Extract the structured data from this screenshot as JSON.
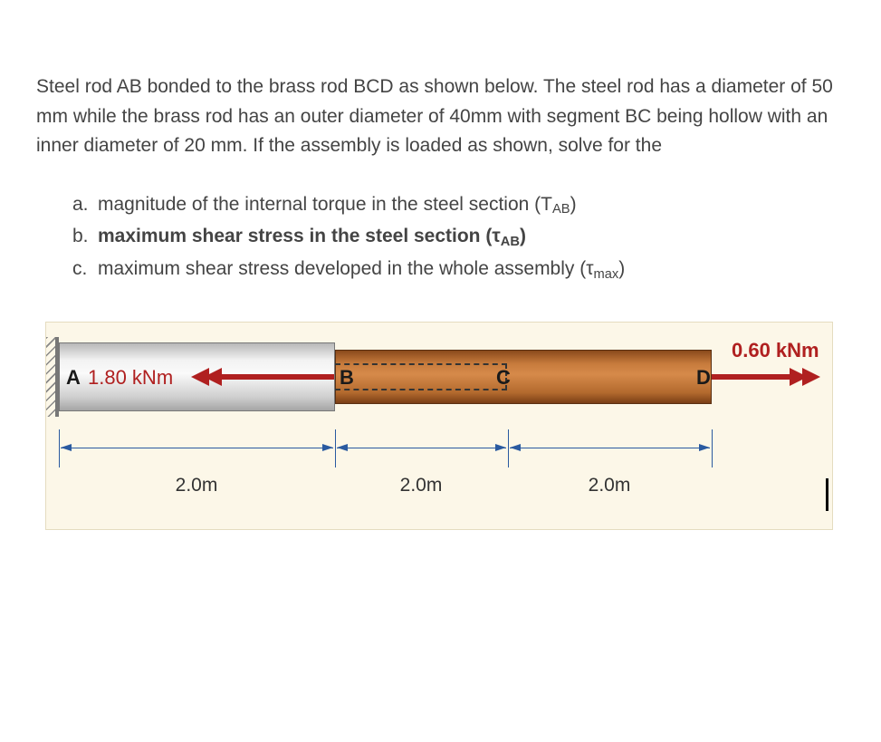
{
  "intro_text": "Steel rod AB bonded to the brass rod BCD as shown below. The steel rod has a diameter of 50 mm while the brass rod has an outer diameter of 40mm with segment BC being hollow with an inner diameter of 20 mm. If the assembly is loaded as shown, solve for the",
  "questions": {
    "a": {
      "letter": "a.",
      "text": "magnitude of the internal torque in the steel section (T",
      "sub": "AB",
      "tail": ")"
    },
    "b": {
      "letter": "b.",
      "text": "maximum shear stress in the steel section (τ",
      "sub": "AB",
      "tail": ")"
    },
    "c": {
      "letter": "c.",
      "text": "maximum shear stress developed in the whole assembly (τ",
      "sub": "max",
      "tail": ")"
    }
  },
  "diagram": {
    "type": "engineering-diagram",
    "background_color": "#fcf7e8",
    "steel": {
      "length_label": "2.0m",
      "diameter_mm": 50,
      "gradient": [
        "#b8b8b8",
        "#f2f2f2",
        "#fafafa",
        "#cfcfcf",
        "#a5a5a5"
      ]
    },
    "brass": {
      "length_BC_label": "2.0m",
      "length_CD_label": "2.0m",
      "outer_diameter_mm": 40,
      "inner_diameter_BC_mm": 20,
      "gradient": [
        "#8a4a1c",
        "#c77b3c",
        "#d68a4a",
        "#b36a2e",
        "#7a3e15"
      ]
    },
    "nodes": {
      "A": "A",
      "B": "B",
      "C": "C",
      "D": "D"
    },
    "torques": {
      "A": {
        "label": "1.80 kNm",
        "direction": "left",
        "color": "#b02020"
      },
      "D": {
        "label": "0.60 kNm",
        "direction": "right",
        "color": "#b02020"
      }
    },
    "dimension_color": "#2a5aa0",
    "node_label_color": "#1a1a1a",
    "node_label_fontsize": 22,
    "torque_fontsize": 22,
    "dim_fontsize": 21
  }
}
